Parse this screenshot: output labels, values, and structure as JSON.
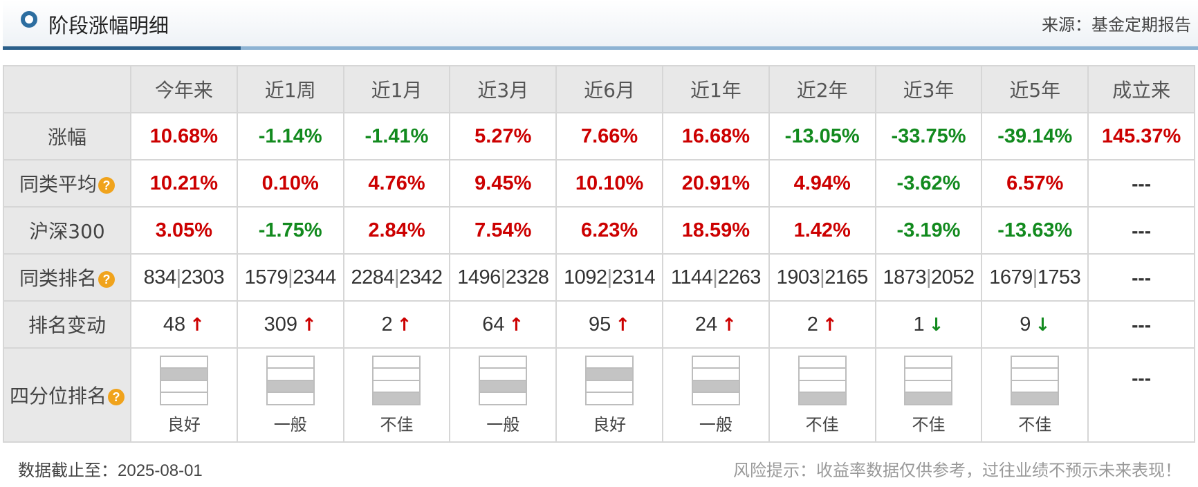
{
  "header": {
    "title": "阶段涨幅明细",
    "source": "来源：基金定期报告"
  },
  "columns": [
    "今年来",
    "近1周",
    "近1月",
    "近3月",
    "近6月",
    "近1年",
    "近2年",
    "近3年",
    "近5年",
    "成立来"
  ],
  "rows": {
    "change": {
      "label": "涨幅",
      "values": [
        {
          "text": "10.68%",
          "dir": "up"
        },
        {
          "text": "-1.14%",
          "dir": "down"
        },
        {
          "text": "-1.41%",
          "dir": "down"
        },
        {
          "text": "5.27%",
          "dir": "up"
        },
        {
          "text": "7.66%",
          "dir": "up"
        },
        {
          "text": "16.68%",
          "dir": "up"
        },
        {
          "text": "-13.05%",
          "dir": "down"
        },
        {
          "text": "-33.75%",
          "dir": "down"
        },
        {
          "text": "-39.14%",
          "dir": "down"
        },
        {
          "text": "145.37%",
          "dir": "up"
        }
      ]
    },
    "peer_avg": {
      "label": "同类平均",
      "values": [
        {
          "text": "10.21%",
          "dir": "up"
        },
        {
          "text": "0.10%",
          "dir": "up"
        },
        {
          "text": "4.76%",
          "dir": "up"
        },
        {
          "text": "9.45%",
          "dir": "up"
        },
        {
          "text": "10.10%",
          "dir": "up"
        },
        {
          "text": "20.91%",
          "dir": "up"
        },
        {
          "text": "4.94%",
          "dir": "up"
        },
        {
          "text": "-3.62%",
          "dir": "down"
        },
        {
          "text": "6.57%",
          "dir": "up"
        },
        {
          "text": "---",
          "dir": "none"
        }
      ]
    },
    "csi300": {
      "label": "沪深300",
      "values": [
        {
          "text": "3.05%",
          "dir": "up"
        },
        {
          "text": "-1.75%",
          "dir": "down"
        },
        {
          "text": "2.84%",
          "dir": "up"
        },
        {
          "text": "7.54%",
          "dir": "up"
        },
        {
          "text": "6.23%",
          "dir": "up"
        },
        {
          "text": "18.59%",
          "dir": "up"
        },
        {
          "text": "1.42%",
          "dir": "up"
        },
        {
          "text": "-3.19%",
          "dir": "down"
        },
        {
          "text": "-13.63%",
          "dir": "down"
        },
        {
          "text": "---",
          "dir": "none"
        }
      ]
    },
    "peer_rank": {
      "label": "同类排名",
      "values": [
        {
          "rank": "834",
          "total": "2303"
        },
        {
          "rank": "1579",
          "total": "2344"
        },
        {
          "rank": "2284",
          "total": "2342"
        },
        {
          "rank": "1496",
          "total": "2328"
        },
        {
          "rank": "1092",
          "total": "2314"
        },
        {
          "rank": "1144",
          "total": "2263"
        },
        {
          "rank": "1903",
          "total": "2165"
        },
        {
          "rank": "1873",
          "total": "2052"
        },
        {
          "rank": "1679",
          "total": "1753"
        },
        {
          "text": "---"
        }
      ]
    },
    "rank_change": {
      "label": "排名变动",
      "values": [
        {
          "text": "48",
          "arrow": "up"
        },
        {
          "text": "309",
          "arrow": "up"
        },
        {
          "text": "2",
          "arrow": "up"
        },
        {
          "text": "64",
          "arrow": "up"
        },
        {
          "text": "95",
          "arrow": "up"
        },
        {
          "text": "24",
          "arrow": "up"
        },
        {
          "text": "2",
          "arrow": "up"
        },
        {
          "text": "1",
          "arrow": "down"
        },
        {
          "text": "9",
          "arrow": "down"
        },
        {
          "text": "---",
          "arrow": "none"
        }
      ]
    },
    "quartile": {
      "label": "四分位排名",
      "values": [
        {
          "label": "良好",
          "quartile": 2
        },
        {
          "label": "一般",
          "quartile": 3
        },
        {
          "label": "不佳",
          "quartile": 4
        },
        {
          "label": "一般",
          "quartile": 3
        },
        {
          "label": "良好",
          "quartile": 2
        },
        {
          "label": "一般",
          "quartile": 3
        },
        {
          "label": "不佳",
          "quartile": 4
        },
        {
          "label": "不佳",
          "quartile": 4
        },
        {
          "label": "不佳",
          "quartile": 4
        },
        {
          "text": "---"
        }
      ]
    }
  },
  "footer": {
    "date_label": "数据截止至：",
    "date": "2025-08-01",
    "risk": "风险提示：收益率数据仅供参考，过往业绩不预示未来表现！"
  },
  "colors": {
    "up": "#cc0000",
    "down": "#128a1e",
    "quartile_fill": "#c4c4c4",
    "accent": "#2b5f8a"
  },
  "icons": {
    "help": "question-icon",
    "up": "arrow-up-icon",
    "down": "arrow-down-icon"
  }
}
